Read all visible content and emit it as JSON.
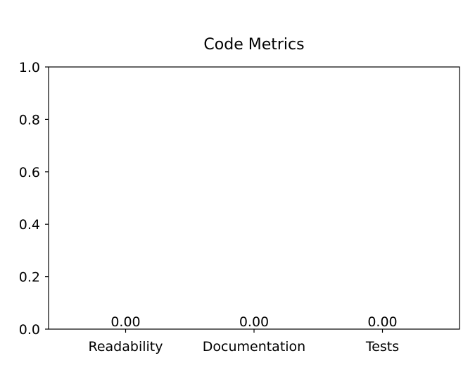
{
  "chart_data": {
    "type": "bar",
    "title": "Code Metrics",
    "xlabel": "",
    "ylabel": "",
    "categories": [
      "Readability",
      "Documentation",
      "Tests"
    ],
    "values": [
      0.0,
      0.0,
      0.0
    ],
    "value_labels": [
      "0.00",
      "0.00",
      "0.00"
    ],
    "ylim": [
      0.0,
      1.0
    ],
    "yticks": [
      0.0,
      0.2,
      0.4,
      0.6,
      0.8,
      1.0
    ],
    "ytick_labels": [
      "0.0",
      "0.2",
      "0.4",
      "0.6",
      "0.8",
      "1.0"
    ],
    "grid": false,
    "legend": "none"
  },
  "colors": {
    "bar": "#1f77b4",
    "axis": "#000000",
    "background": "#ffffff"
  }
}
